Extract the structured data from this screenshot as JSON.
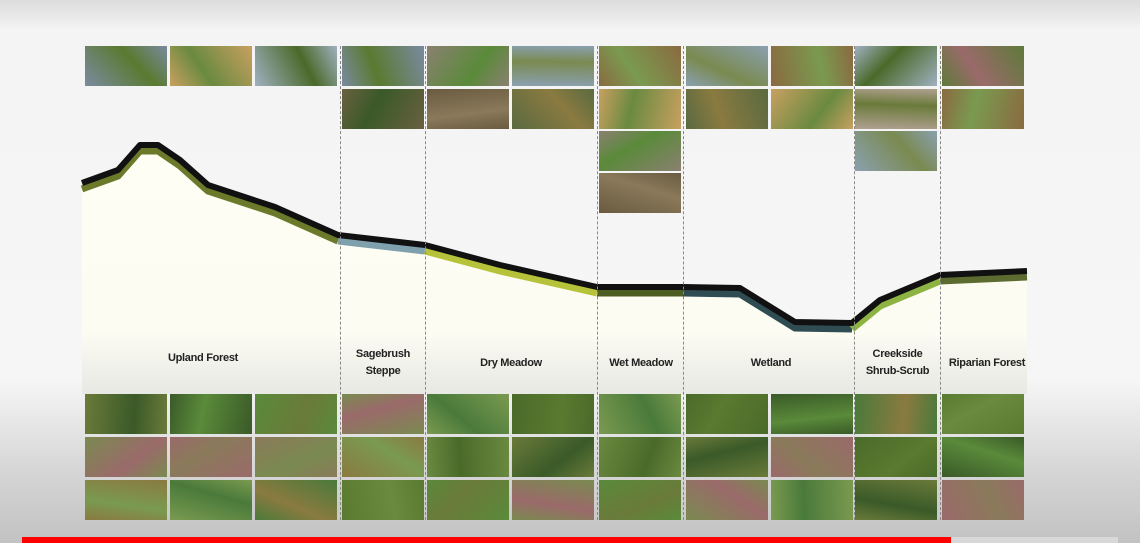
{
  "zones": [
    {
      "label": "Upland Forest"
    },
    {
      "label": "Sagebrush Steppe",
      "line1": "Sagebrush",
      "line2": "Steppe"
    },
    {
      "label": "Dry Meadow"
    },
    {
      "label": "Wet Meadow"
    },
    {
      "label": "Wetland"
    },
    {
      "label": "Creekside Shrub-Scrub",
      "line1": "Creekside",
      "line2": "Shrub-Scrub"
    },
    {
      "label": "Riparian Forest"
    }
  ],
  "colors": {
    "profile_line": "#111111",
    "upland_forest": "#6b7a2a",
    "sagebrush_steppe": "#7fa0ad",
    "dry_meadow": "#b6c33a",
    "wet_meadow": "#4d5d22",
    "wetland": "#2e4c52",
    "creekside": "#8db443",
    "riparian_forest": "#5c6c30",
    "progress": "#ff0000"
  },
  "video": {
    "progress_percent": 84.8
  }
}
